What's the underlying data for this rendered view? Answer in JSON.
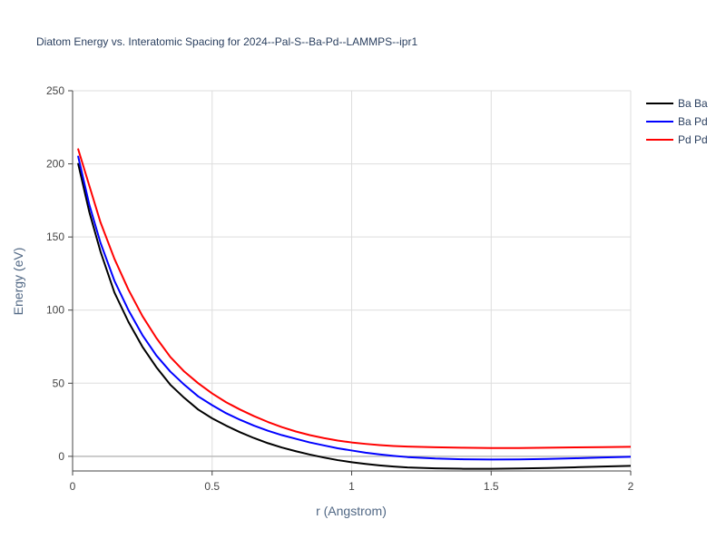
{
  "chart_data": {
    "type": "line",
    "title": "Diatom Energy vs. Interatomic Spacing for 2024--Pal-S--Ba-Pd--LAMMPS--ipr1",
    "xlabel": "r (Angstrom)",
    "ylabel": "Energy (eV)",
    "xlim": [
      0,
      2
    ],
    "ylim": [
      -10,
      250
    ],
    "xticks": [
      0,
      0.5,
      1,
      1.5,
      2
    ],
    "xtick_labels": [
      "0",
      "0.5",
      "1",
      "1.5",
      "2"
    ],
    "yticks": [
      0,
      50,
      100,
      150,
      200,
      250
    ],
    "ytick_labels": [
      "0",
      "50",
      "100",
      "150",
      "200",
      "250"
    ],
    "grid": true,
    "legend_position": "top-right",
    "series": [
      {
        "name": "Ba Ba",
        "color": "#000000",
        "x": [
          0.02,
          0.06,
          0.1,
          0.15,
          0.2,
          0.25,
          0.3,
          0.35,
          0.4,
          0.45,
          0.5,
          0.55,
          0.6,
          0.65,
          0.7,
          0.75,
          0.8,
          0.85,
          0.9,
          0.95,
          1.0,
          1.05,
          1.1,
          1.15,
          1.2,
          1.3,
          1.4,
          1.5,
          1.6,
          1.7,
          1.8,
          1.9,
          2.0
        ],
        "y": [
          200,
          167,
          140,
          112,
          92,
          75,
          61,
          49,
          40,
          32,
          26,
          21,
          16.5,
          12.5,
          9,
          6,
          3.5,
          1.2,
          -0.8,
          -2.6,
          -4,
          -5.2,
          -6.2,
          -7,
          -7.6,
          -8.2,
          -8.5,
          -8.5,
          -8.3,
          -8,
          -7.5,
          -7,
          -6.5
        ]
      },
      {
        "name": "Ba Pd",
        "color": "#0000ff",
        "x": [
          0.02,
          0.06,
          0.1,
          0.15,
          0.2,
          0.25,
          0.3,
          0.35,
          0.4,
          0.45,
          0.5,
          0.55,
          0.6,
          0.65,
          0.7,
          0.75,
          0.8,
          0.85,
          0.9,
          0.95,
          1.0,
          1.05,
          1.1,
          1.15,
          1.2,
          1.3,
          1.4,
          1.5,
          1.6,
          1.7,
          1.8,
          1.9,
          2.0
        ],
        "y": [
          205,
          172,
          146,
          120,
          100,
          83,
          69,
          58,
          49,
          41,
          35,
          29.5,
          25,
          21,
          17.5,
          14.5,
          12,
          9.5,
          7.5,
          5.5,
          4,
          2.5,
          1.3,
          0.3,
          -0.5,
          -1.5,
          -2,
          -2.2,
          -2.1,
          -1.8,
          -1.3,
          -0.8,
          -0.3
        ]
      },
      {
        "name": "Pd Pd",
        "color": "#ff0000",
        "x": [
          0.02,
          0.06,
          0.1,
          0.15,
          0.2,
          0.25,
          0.3,
          0.35,
          0.4,
          0.45,
          0.5,
          0.55,
          0.6,
          0.65,
          0.7,
          0.75,
          0.8,
          0.85,
          0.9,
          0.95,
          1.0,
          1.05,
          1.1,
          1.15,
          1.2,
          1.3,
          1.4,
          1.5,
          1.6,
          1.7,
          1.8,
          1.9,
          2.0
        ],
        "y": [
          210,
          185,
          160,
          135,
          114,
          96,
          81,
          68,
          58,
          50,
          43,
          37,
          32,
          27.5,
          23.5,
          20,
          17,
          14.5,
          12.5,
          10.8,
          9.5,
          8.5,
          7.7,
          7.1,
          6.7,
          6.2,
          5.9,
          5.7,
          5.7,
          5.9,
          6.1,
          6.3,
          6.5
        ]
      }
    ]
  }
}
